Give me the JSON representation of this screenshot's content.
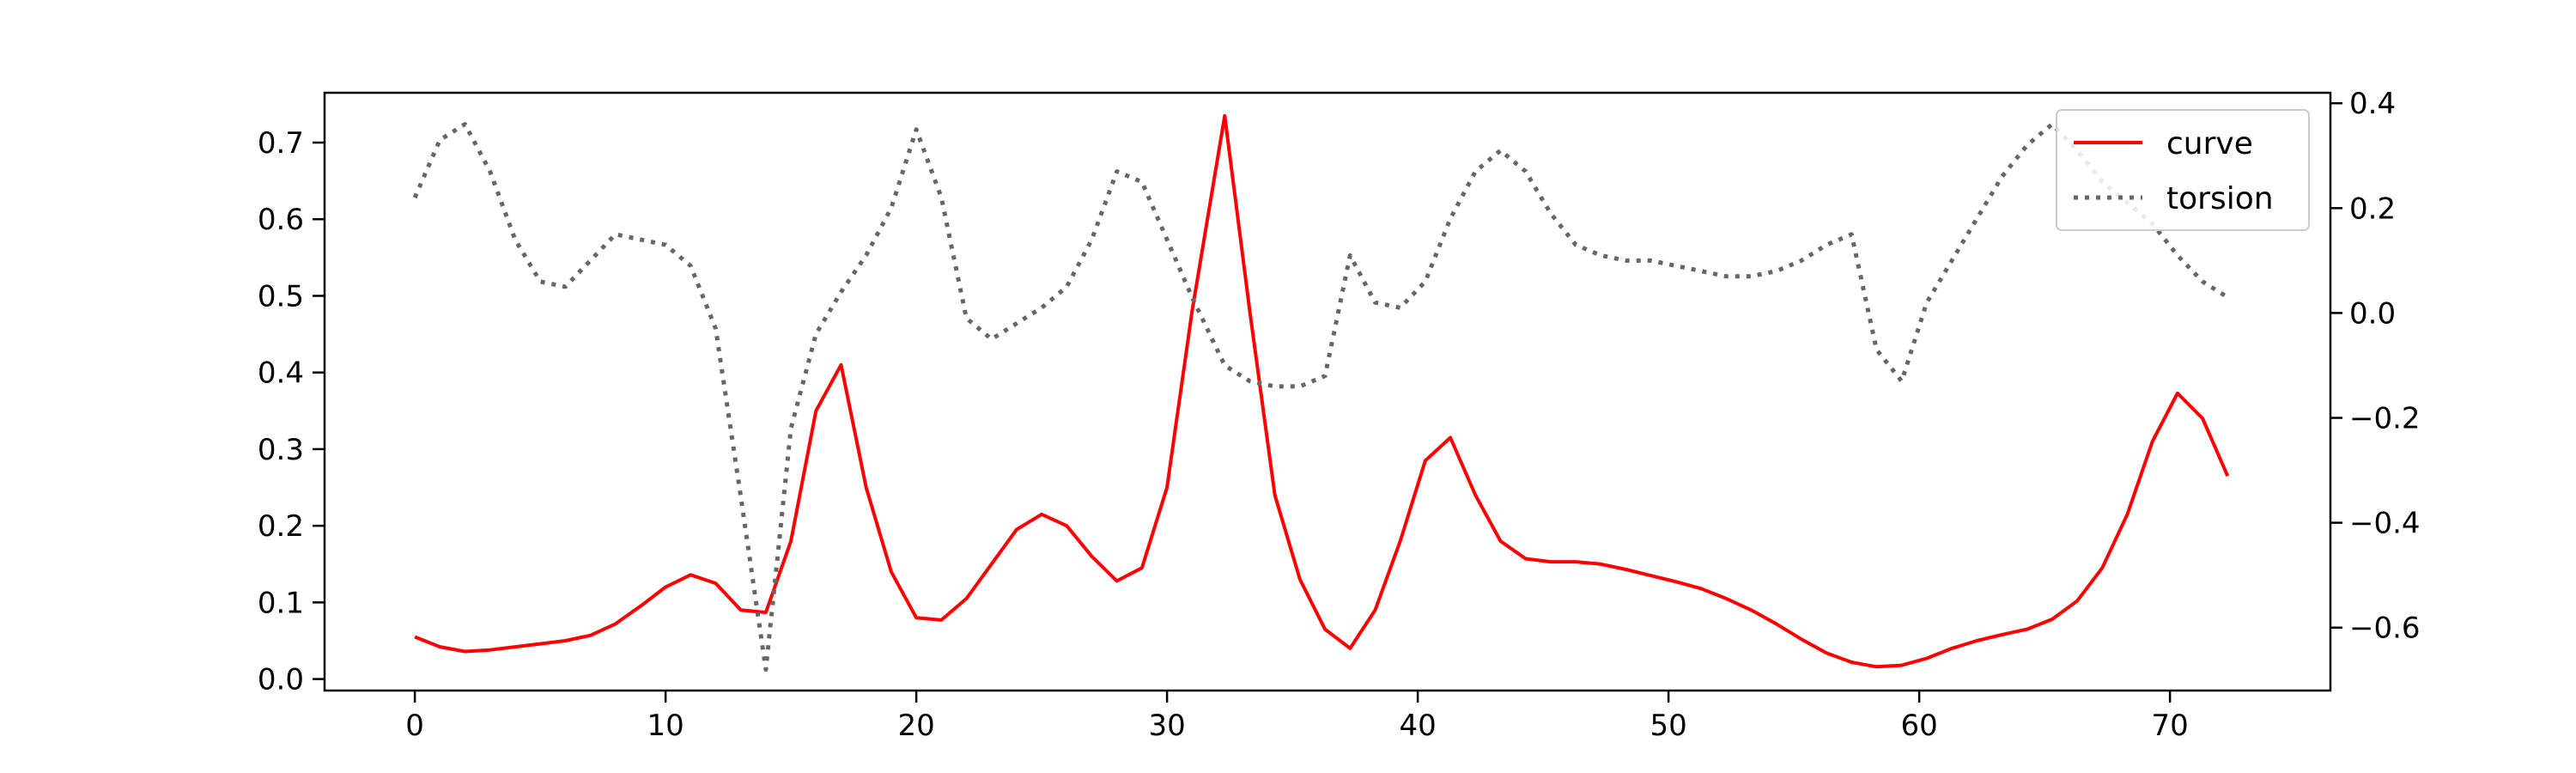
{
  "chart_data": {
    "type": "line",
    "title": "",
    "xlabel": "",
    "ylabel": "",
    "y2label": "",
    "xlim": [
      -3.6,
      76.4
    ],
    "ylim": [
      -0.015,
      0.765
    ],
    "y2lim": [
      -0.72,
      0.42
    ],
    "grid": false,
    "legend_position": "top-right",
    "x_ticks": [
      0,
      10,
      20,
      30,
      40,
      50,
      60,
      70
    ],
    "x_tick_labels": [
      "0",
      "10",
      "20",
      "30",
      "40",
      "50",
      "60",
      "70"
    ],
    "y_ticks": [
      0.0,
      0.1,
      0.2,
      0.3,
      0.4,
      0.5,
      0.6,
      0.7
    ],
    "y_tick_labels": [
      "0.0",
      "0.1",
      "0.2",
      "0.3",
      "0.4",
      "0.5",
      "0.6",
      "0.7"
    ],
    "y2_ticks": [
      -0.6,
      -0.4,
      -0.2,
      0.0,
      0.2,
      0.4
    ],
    "y2_tick_labels": [
      "−0.6",
      "−0.4",
      "−0.2",
      "0.0",
      "0.2",
      "0.4"
    ],
    "series": [
      {
        "name": "curve",
        "axis": "left",
        "color": "#ff0000",
        "style": "solid",
        "x": [
          0,
          1,
          2,
          3,
          4,
          5,
          6,
          7,
          8,
          9,
          10,
          11,
          12,
          13,
          14,
          15,
          16,
          17,
          18,
          19,
          20,
          21,
          22,
          23,
          24,
          25,
          26,
          27,
          28,
          29,
          30,
          31,
          32.3,
          33.3,
          34.3,
          35.3,
          36.3,
          37.3,
          38.3,
          39.3,
          40.3,
          41.3,
          42.3,
          43.3,
          44.3,
          45.3,
          46.3,
          47.3,
          48.3,
          49.3,
          50.3,
          51.3,
          52.3,
          53.3,
          54.3,
          55.3,
          56.3,
          57.3,
          58.3,
          59.3,
          60.3,
          61.3,
          62.3,
          63.3,
          64.3,
          65.3,
          66.3,
          67.3,
          68.3,
          69.3,
          70.3,
          71.3,
          72.3
        ],
        "values": [
          0.055,
          0.042,
          0.036,
          0.038,
          0.042,
          0.046,
          0.05,
          0.057,
          0.072,
          0.095,
          0.12,
          0.136,
          0.125,
          0.09,
          0.087,
          0.18,
          0.35,
          0.41,
          0.25,
          0.14,
          0.08,
          0.077,
          0.105,
          0.15,
          0.195,
          0.215,
          0.2,
          0.16,
          0.128,
          0.145,
          0.25,
          0.48,
          0.735,
          0.48,
          0.24,
          0.13,
          0.065,
          0.04,
          0.09,
          0.18,
          0.285,
          0.315,
          0.24,
          0.18,
          0.157,
          0.153,
          0.153,
          0.15,
          0.143,
          0.135,
          0.127,
          0.118,
          0.105,
          0.09,
          0.072,
          0.052,
          0.034,
          0.022,
          0.016,
          0.018,
          0.027,
          0.04,
          0.05,
          0.058,
          0.065,
          0.078,
          0.102,
          0.145,
          0.215,
          0.31,
          0.373,
          0.34,
          0.265
        ]
      },
      {
        "name": "torsion",
        "axis": "right",
        "color": "#666666",
        "style": "dotted",
        "x": [
          0,
          1,
          2,
          3,
          4,
          5,
          6,
          7,
          8,
          9,
          10,
          11,
          12,
          13,
          14,
          15,
          16,
          17,
          18,
          19,
          20,
          21,
          22,
          23,
          24,
          25,
          26,
          27,
          28,
          29,
          30,
          31,
          32.3,
          33.3,
          34.3,
          35.3,
          36.3,
          37.3,
          38.3,
          39.3,
          40.3,
          41.3,
          42.3,
          43.3,
          44.3,
          45.3,
          46.3,
          47.3,
          48.3,
          49.3,
          50.3,
          51.3,
          52.3,
          53.3,
          54.3,
          55.3,
          56.3,
          57.3,
          58.3,
          59.3,
          60.3,
          61.3,
          62.3,
          63.3,
          64.3,
          65.3,
          66.3,
          67.3,
          68.3,
          69.3,
          70.3,
          71.3,
          72.3
        ],
        "values": [
          0.22,
          0.33,
          0.36,
          0.27,
          0.14,
          0.06,
          0.05,
          0.1,
          0.15,
          0.14,
          0.13,
          0.09,
          -0.03,
          -0.35,
          -0.68,
          -0.22,
          -0.04,
          0.04,
          0.11,
          0.2,
          0.35,
          0.22,
          -0.01,
          -0.05,
          -0.02,
          0.01,
          0.05,
          0.14,
          0.27,
          0.25,
          0.14,
          0.03,
          -0.1,
          -0.13,
          -0.14,
          -0.14,
          -0.12,
          0.11,
          0.02,
          0.01,
          0.06,
          0.18,
          0.27,
          0.31,
          0.27,
          0.19,
          0.13,
          0.11,
          0.1,
          0.1,
          0.09,
          0.08,
          0.07,
          0.07,
          0.08,
          0.1,
          0.13,
          0.15,
          -0.07,
          -0.13,
          0.02,
          0.1,
          0.18,
          0.26,
          0.32,
          0.36,
          0.31,
          0.25,
          0.21,
          0.17,
          0.11,
          0.06,
          0.03
        ]
      }
    ]
  }
}
